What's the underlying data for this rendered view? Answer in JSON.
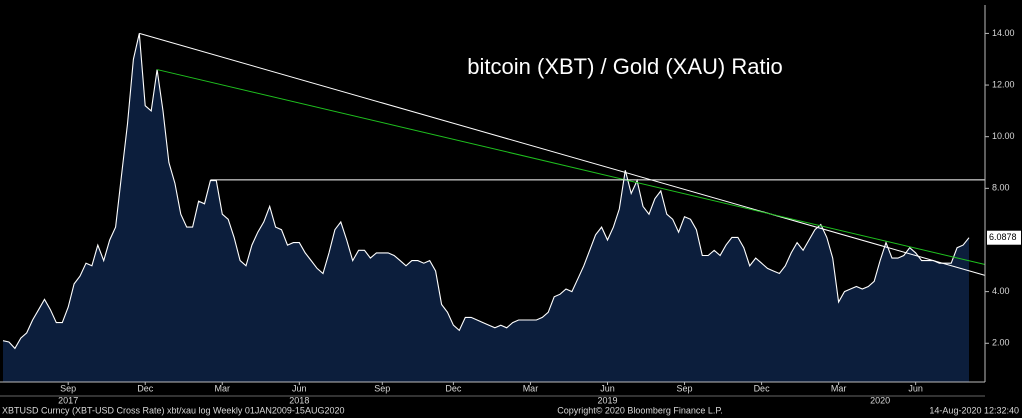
{
  "chart_data": {
    "type": "area",
    "title": "bitcoin (XBT) / Gold (XAU) Ratio",
    "color": "#0c1e3c",
    "line_color": "#ffffff",
    "grid": false,
    "values": [
      2.1,
      2.05,
      1.8,
      2.2,
      2.4,
      2.9,
      3.3,
      3.7,
      3.3,
      2.8,
      2.8,
      3.4,
      4.3,
      4.6,
      5.1,
      5.0,
      5.8,
      5.2,
      6.0,
      6.5,
      8.5,
      10.5,
      13.0,
      14.0,
      11.2,
      11.0,
      12.6,
      11.0,
      9.0,
      8.2,
      7.0,
      6.5,
      6.5,
      7.5,
      7.4,
      8.3,
      8.3,
      7.0,
      6.8,
      6.1,
      5.2,
      5.0,
      5.8,
      6.3,
      6.7,
      7.3,
      6.5,
      6.4,
      5.8,
      5.9,
      5.9,
      5.5,
      5.2,
      4.9,
      4.7,
      5.5,
      6.4,
      6.7,
      6.0,
      5.2,
      5.6,
      5.6,
      5.3,
      5.5,
      5.5,
      5.5,
      5.4,
      5.2,
      5.0,
      5.2,
      5.2,
      5.1,
      5.2,
      4.8,
      3.5,
      3.2,
      2.7,
      2.5,
      3.0,
      3.0,
      2.9,
      2.8,
      2.7,
      2.6,
      2.7,
      2.6,
      2.8,
      2.9,
      2.9,
      2.9,
      2.9,
      3.0,
      3.2,
      3.8,
      3.9,
      4.1,
      4.0,
      4.5,
      5.0,
      5.6,
      6.2,
      6.5,
      6.0,
      6.5,
      7.2,
      8.7,
      7.8,
      8.3,
      7.3,
      7.0,
      7.6,
      7.9,
      7.0,
      6.8,
      6.3,
      6.9,
      6.8,
      6.4,
      5.4,
      5.4,
      5.6,
      5.4,
      5.8,
      6.1,
      6.1,
      5.7,
      5.0,
      5.3,
      5.1,
      4.9,
      4.8,
      4.7,
      5.0,
      5.5,
      5.9,
      5.6,
      6.0,
      6.4,
      6.6,
      6.1,
      5.3,
      3.6,
      4.0,
      4.1,
      4.2,
      4.1,
      4.2,
      4.4,
      5.2,
      5.9,
      5.3,
      5.3,
      5.4,
      5.7,
      5.5,
      5.2,
      5.2,
      5.2,
      5.1,
      5.1,
      5.1,
      5.7,
      5.8,
      6.0878
    ],
    "categories": [
      null,
      null,
      null,
      null,
      null,
      null,
      null,
      null,
      null,
      null,
      null,
      "Sep",
      null,
      null,
      null,
      null,
      null,
      null,
      null,
      null,
      null,
      null,
      null,
      null,
      "Dec",
      null,
      null,
      null,
      null,
      null,
      null,
      null,
      null,
      null,
      null,
      null,
      null,
      "Mar",
      null,
      null,
      null,
      null,
      null,
      null,
      null,
      null,
      null,
      null,
      null,
      null,
      "Jun",
      null,
      null,
      null,
      null,
      null,
      null,
      null,
      null,
      null,
      null,
      null,
      null,
      null,
      "Sep",
      null,
      null,
      null,
      null,
      null,
      null,
      null,
      null,
      null,
      null,
      null,
      "Dec",
      null,
      null,
      null,
      null,
      null,
      null,
      null,
      null,
      null,
      null,
      null,
      null,
      "Mar",
      null,
      null,
      null,
      null,
      null,
      null,
      null,
      null,
      null,
      null,
      null,
      null,
      "Jun",
      null,
      null,
      null,
      null,
      null,
      null,
      null,
      null,
      null,
      null,
      null,
      null,
      "Sep",
      null,
      null,
      null,
      null,
      null,
      null,
      null,
      null,
      null,
      null,
      null,
      null,
      "Dec",
      null,
      null,
      null,
      null,
      null,
      null,
      null,
      null,
      null,
      null,
      null,
      null,
      "Mar",
      null,
      null,
      null,
      null,
      null,
      null,
      null,
      null,
      null,
      null,
      null,
      null,
      "Jun",
      null,
      null,
      null,
      null,
      null,
      null,
      null,
      null,
      null
    ],
    "year_categories": [
      null,
      null,
      null,
      null,
      null,
      null,
      null,
      null,
      null,
      null,
      null,
      "2017",
      null,
      null,
      null,
      null,
      null,
      null,
      null,
      null,
      null,
      null,
      null,
      null,
      null,
      null,
      null,
      null,
      null,
      null,
      null,
      null,
      null,
      null,
      null,
      null,
      null,
      null,
      null,
      null,
      null,
      null,
      null,
      null,
      null,
      null,
      null,
      null,
      null,
      null,
      "2018",
      null,
      null,
      null,
      null,
      null,
      null,
      null,
      null,
      null,
      null,
      null,
      null,
      null,
      null,
      null,
      null,
      null,
      null,
      null,
      null,
      null,
      null,
      null,
      null,
      null,
      null,
      null,
      null,
      null,
      null,
      null,
      null,
      null,
      null,
      null,
      null,
      null,
      null,
      null,
      null,
      null,
      null,
      null,
      null,
      null,
      null,
      null,
      null,
      null,
      null,
      null,
      "2019",
      null,
      null,
      null,
      null,
      null,
      null,
      null,
      null,
      null,
      null,
      null,
      null,
      null,
      null,
      null,
      null,
      null,
      null,
      null,
      null,
      null,
      null,
      null,
      null,
      null,
      null,
      null,
      null,
      null,
      null,
      null,
      null,
      null,
      null,
      null,
      null,
      null,
      null,
      null,
      null,
      null,
      null,
      null,
      null,
      null,
      "2020",
      null,
      null,
      null,
      null,
      null,
      null,
      null,
      null,
      null,
      null,
      null,
      null,
      null,
      null,
      null
    ],
    "ylim": [
      0.5,
      15.1
    ],
    "yticks": [
      {
        "value": 2,
        "label": "2.00"
      },
      {
        "value": 4,
        "label": "4.00"
      },
      {
        "value": 8,
        "label": "8.00"
      },
      {
        "value": 10,
        "label": "10.00"
      },
      {
        "value": 12,
        "label": "12.00"
      },
      {
        "value": 14,
        "label": "14.00"
      }
    ],
    "trend_lines": [
      {
        "color": "#ffffff",
        "start": 23,
        "values": [
          14.0,
          4.63
        ]
      },
      {
        "color": "#1fc01f",
        "start": 26,
        "values": [
          12.6,
          5.05
        ]
      },
      {
        "color": "#ffffff",
        "start": 35,
        "values": [
          8.33,
          8.33
        ]
      }
    ],
    "footer_left": "XBTUSD Curncy (XBT-USD Cross Rate) xbt/xau log  Weekly 01JAN2009-15AUG2020",
    "footer_center": "Copyright© 2020 Bloomberg Finance L.P.",
    "footer_right": "14-Aug-2020 12:32:40"
  }
}
